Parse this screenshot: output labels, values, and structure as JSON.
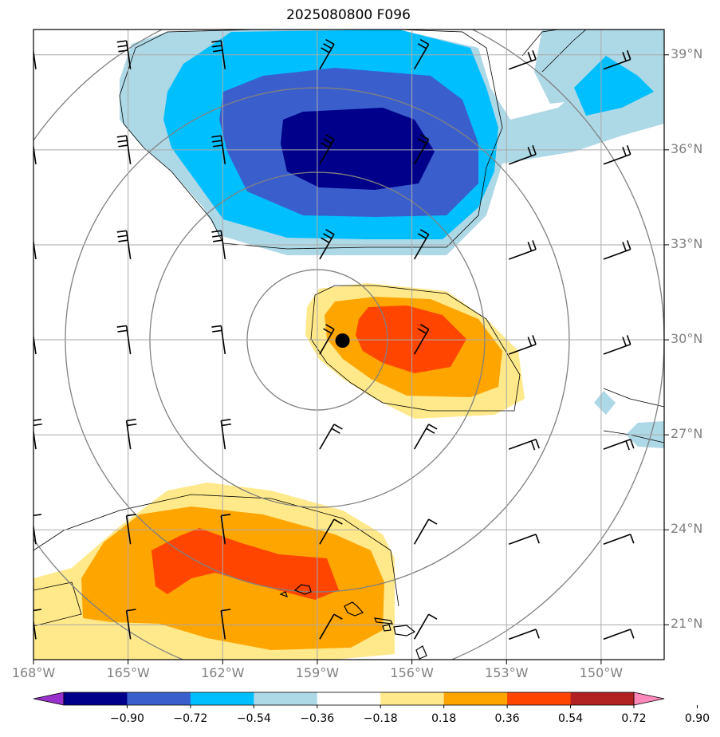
{
  "chart_data": {
    "type": "heatmap",
    "title": "2025080800 F096",
    "map_extent": {
      "lon": [
        -168,
        -148
      ],
      "lat": [
        19.9,
        39.8
      ]
    },
    "lat_ticks": [
      "39°N",
      "36°N",
      "33°N",
      "30°N",
      "27°N",
      "24°N",
      "21°N"
    ],
    "lat_values": [
      39,
      36,
      33,
      30,
      27,
      24,
      21
    ],
    "lon_ticks": [
      "168°W",
      "165°W",
      "162°W",
      "159°W",
      "156°W",
      "153°W",
      "150°W"
    ],
    "lon_values": [
      -168,
      -165,
      -162,
      -159,
      -156,
      -153,
      -150
    ],
    "colorbar": {
      "levels": [
        "−0.90",
        "−0.72",
        "−0.54",
        "−0.36",
        "−0.18",
        "0.18",
        "0.36",
        "0.54",
        "0.72",
        "0.90"
      ],
      "colors": [
        "#9932cc",
        "#00008b",
        "#3a5fcd",
        "#00bfff",
        "#add8e6",
        "#ffffff",
        "#ffe98a",
        "#ffa500",
        "#ff4500",
        "#b22222",
        "#ff88bb"
      ],
      "extend": "both"
    },
    "features": {
      "center_marker": {
        "lon": -158.2,
        "lat": 29.85
      },
      "range_rings": "concentric circles around center marker",
      "negative_anomaly_center": {
        "lon": -157.5,
        "lat": 36.2,
        "min_level": "−0.72"
      },
      "positive_anomaly_center": {
        "lon": -156.2,
        "lat": 30.0,
        "max_level": "0.72"
      },
      "positive_anomaly_south": {
        "lon": -161,
        "lat": 22.6,
        "max_level": "0.72"
      }
    },
    "wind_barbs": "grid of wind barbs every 3 degrees",
    "grid": true
  }
}
